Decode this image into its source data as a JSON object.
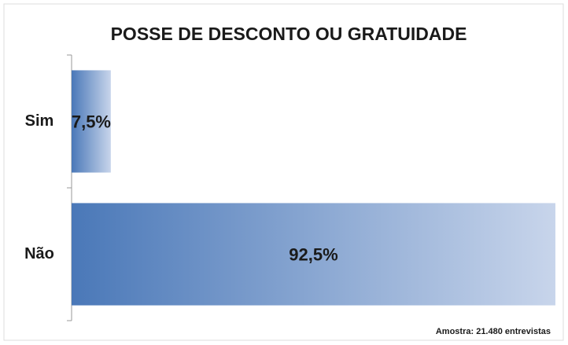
{
  "chart_data": {
    "type": "hbar",
    "title": "POSSE DE DESCONTO OU GRATUIDADE",
    "categories": [
      "Sim",
      "Não"
    ],
    "values": [
      7.5,
      92.5
    ],
    "value_labels": [
      "7,5%",
      "92,5%"
    ],
    "color": "#4a78b8",
    "note": "Amostra: 21.480 entrevistas"
  }
}
